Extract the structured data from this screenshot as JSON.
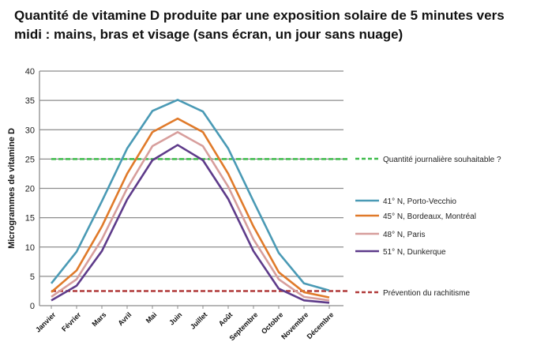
{
  "chart_data": {
    "type": "line",
    "title": "Quantité de vitamine D produite par une exposition solaire de 5 minutes vers midi : mains, bras et visage (sans écran, un jour sans nuage)",
    "xlabel": "",
    "ylabel": "Microgrammes de vitamine D",
    "ylim": [
      0,
      40
    ],
    "yticks": [
      0,
      5,
      10,
      15,
      20,
      25,
      30,
      35,
      40
    ],
    "grid": true,
    "legend_position": "right",
    "categories": [
      "Janvier",
      "Février",
      "Mars",
      "Avril",
      "Mai",
      "Juin",
      "Juillet",
      "Août",
      "Septembre",
      "Octobre",
      "Novembre",
      "Décembre"
    ],
    "series": [
      {
        "name": "41° N, Porto-Vecchio",
        "color": "#4a9ab5",
        "values": [
          3.8,
          9.2,
          17.8,
          26.8,
          33.2,
          35.1,
          33.1,
          26.8,
          17.8,
          9.0,
          3.8,
          2.6
        ]
      },
      {
        "name": "45° N, Bordeaux, Montréal",
        "color": "#e07a2a",
        "values": [
          2.3,
          6.0,
          13.5,
          22.5,
          29.6,
          31.9,
          29.6,
          22.5,
          13.5,
          5.7,
          2.3,
          1.4
        ]
      },
      {
        "name": "48° N, Paris",
        "color": "#d79e9c",
        "values": [
          1.5,
          4.5,
          11.3,
          20.0,
          27.2,
          29.6,
          27.2,
          20.3,
          11.3,
          4.5,
          1.5,
          0.9
        ]
      },
      {
        "name": "51° N, Dunkerque",
        "color": "#5e3b8a",
        "values": [
          0.9,
          3.4,
          9.3,
          18.1,
          24.8,
          27.4,
          24.8,
          18.2,
          9.3,
          2.9,
          0.9,
          0.5
        ]
      }
    ],
    "reference_lines": [
      {
        "name": "Quantité journalière souhaitable ?",
        "value": 25,
        "color": "#3dbb4a"
      },
      {
        "name": "Prévention du rachitisme",
        "value": 2.5,
        "color": "#b03a3a"
      }
    ]
  }
}
